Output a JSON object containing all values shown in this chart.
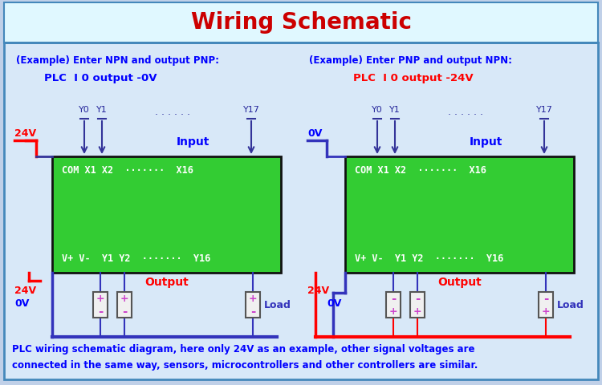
{
  "title": "Wiring Schematic",
  "title_color": "#CC0000",
  "title_bg": "#E0F8FF",
  "bg_color": "#C0D0E8",
  "body_bg": "#D8E8F8",
  "green_box_color": "#33CC33",
  "left_example_title": "(Example) Enter NPN and output PNP:",
  "left_subtitle": "PLC  I 0 output -0V",
  "right_example_title": "(Example) Enter PNP and output NPN:",
  "right_subtitle": "PLC  I 0 output -24V",
  "left_box_top_text": "COM X1 X2  ·······  X16",
  "left_box_bot_text": "V+ V-  Y1 Y2  ·······  Y16",
  "right_box_top_text": "COM X1 X2  ·······  X16",
  "right_box_bot_text": "V+ V-  Y1 Y2  ·······  Y16",
  "footer_line1": "PLC wiring schematic diagram, here only 24V as an example, other signal voltages are",
  "footer_line2": "connected in the same way, sensors, microcontrollers and other controllers are similar.",
  "input_label": "Input",
  "output_label": "Output",
  "load_label": "Load"
}
